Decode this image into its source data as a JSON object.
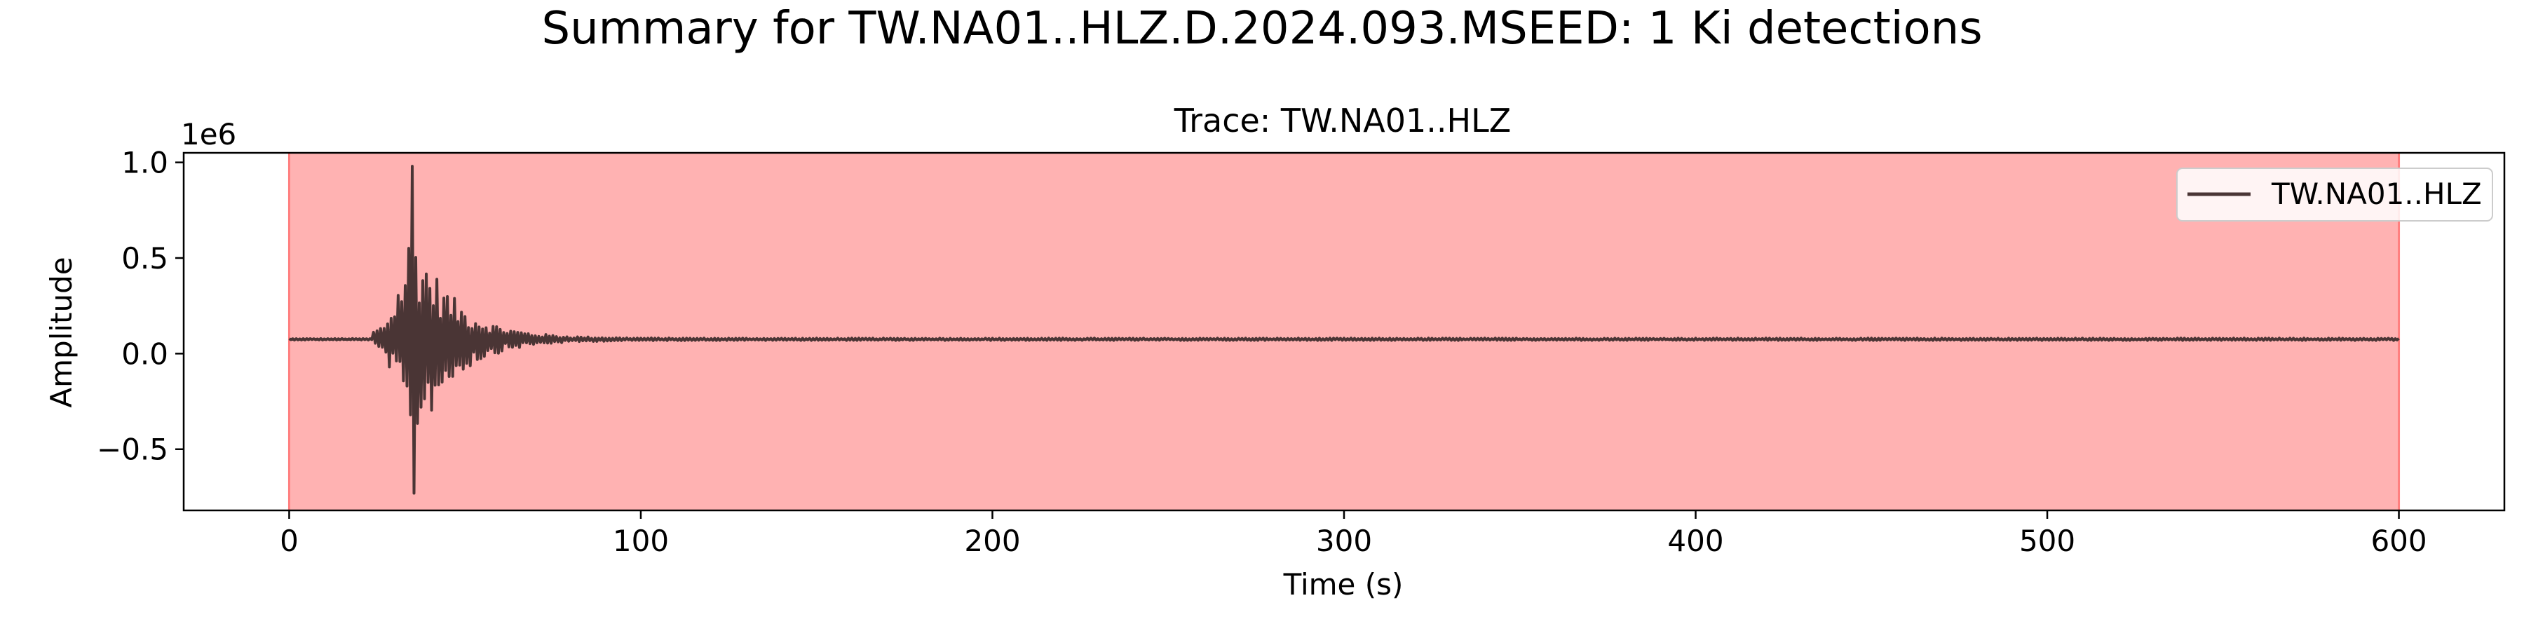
{
  "figure": {
    "suptitle": "Summary for TW.NA01..HLZ.D.2024.093.MSEED: 1 Ki detections"
  },
  "chart_data": {
    "type": "line",
    "title": "Trace: TW.NA01..HLZ",
    "xlabel": "Time (s)",
    "ylabel": "Amplitude",
    "y_offset_label": "1e6",
    "xlim": [
      -30,
      630
    ],
    "ylim": [
      -0.82,
      1.05
    ],
    "x_ticks": [
      0,
      100,
      200,
      300,
      400,
      500,
      600
    ],
    "x_tick_labels": [
      "0",
      "100",
      "200",
      "300",
      "400",
      "500",
      "600"
    ],
    "y_ticks": [
      -0.5,
      0.0,
      0.5,
      1.0
    ],
    "y_tick_labels": [
      "−0.5",
      "0.0",
      "0.5",
      "1.0"
    ],
    "grid": false,
    "legend_position": "top-right",
    "detections": [
      {
        "label": "Ki",
        "start": 0,
        "end": 600,
        "color": "#ff7f7f"
      }
    ],
    "series": [
      {
        "name": "TW.NA01..HLZ",
        "color": "#4a3535",
        "sample_rate_hz": 2,
        "baseline": 0.075,
        "envelope": {
          "onset": 24,
          "peak_time": 35,
          "peak_max": 0.98,
          "peak_min": -0.73,
          "decay_s": 11,
          "background_noise": 0.006
        }
      }
    ]
  }
}
